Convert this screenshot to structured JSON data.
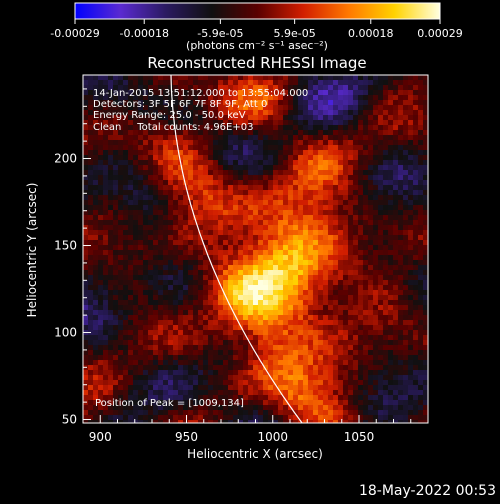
{
  "colorbar": {
    "tick_labels": [
      "-0.00029",
      "-0.00018",
      "-5.9e-05",
      "5.9e-05",
      "0.00018",
      "0.00029"
    ],
    "tick_values": [
      -0.00029,
      -0.00018,
      -5.9e-05,
      5.9e-05,
      0.00018,
      0.00029
    ],
    "range": [
      -0.00029,
      0.00029
    ],
    "units": "(photons cm⁻² s⁻¹ asec⁻²)"
  },
  "footer": {
    "date": "18-May-2022 00:53"
  },
  "chart_data": {
    "type": "heatmap",
    "title": "Reconstructed RHESSI Image",
    "xlabel": "Heliocentric X (arcsec)",
    "ylabel": "Heliocentric Y (arcsec)",
    "xlim": [
      890,
      1090
    ],
    "ylim": [
      48,
      248
    ],
    "x_ticks": [
      900,
      950,
      1000,
      1050
    ],
    "y_ticks": [
      50,
      100,
      150,
      200
    ],
    "annotations": [
      "14-Jan-2015 13:51:12.000 to 13:55:04.000",
      "Detectors: 3F 5F 6F 7F 8F 9F, Att 0",
      "Energy Range: 25.0 - 50.0 keV",
      "Clean     Total counts: 4.96E+03"
    ],
    "peak_label": "Position of Peak = [1009,134]",
    "peak": {
      "x": 1009,
      "y": 134
    },
    "colormap": [
      "#0000ff",
      "#5a2ad0",
      "#2a1a60",
      "#101010",
      "#5a0000",
      "#d21e00",
      "#ff7800",
      "#ffd200",
      "#ffffe0"
    ]
  }
}
